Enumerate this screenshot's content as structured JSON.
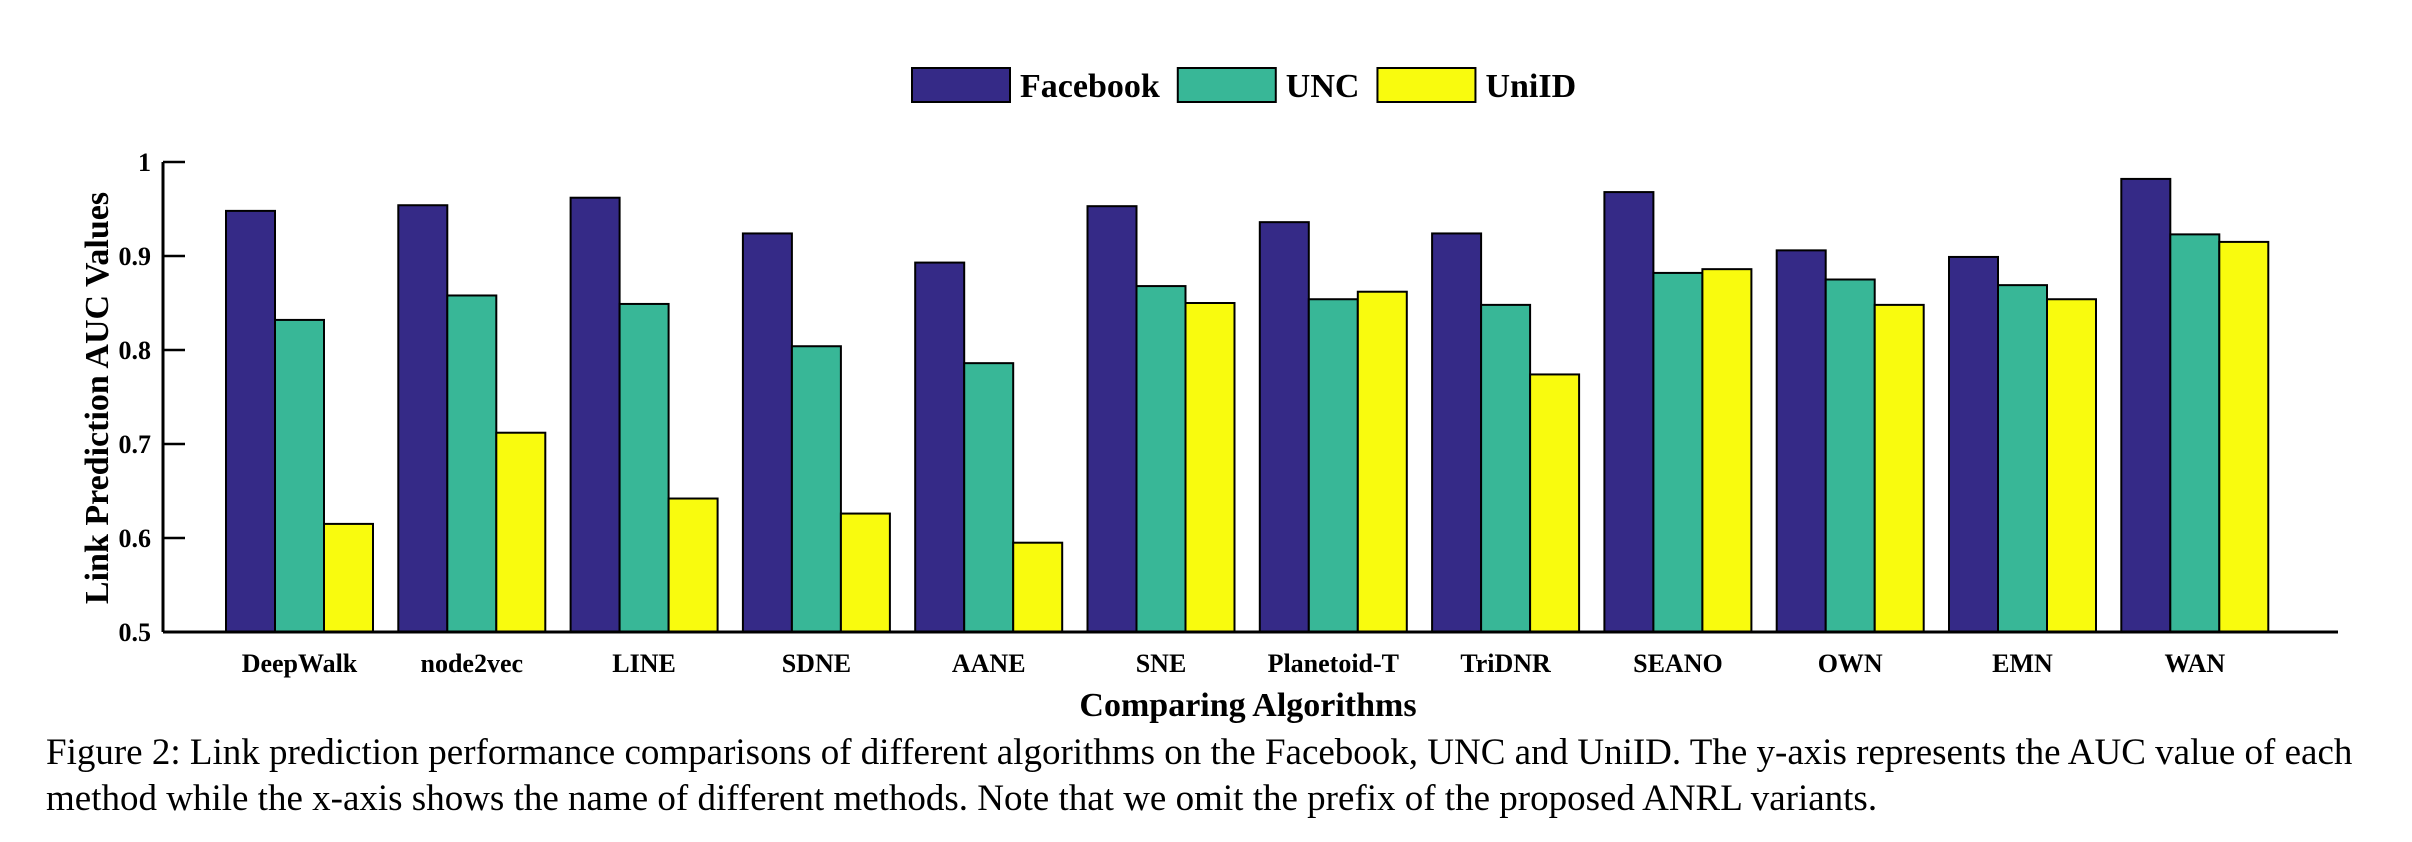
{
  "chart_data": {
    "type": "bar",
    "title": "",
    "xlabel": "Comparing Algorithms",
    "ylabel": "Link Prediction AUC Values",
    "ylim": [
      0.5,
      1
    ],
    "yticks": [
      "0.5",
      "0.6",
      "0.7",
      "0.8",
      "0.9",
      "1"
    ],
    "legend_position": "top-center",
    "grid": false,
    "categories": [
      "DeepWalk",
      "node2vec",
      "LINE",
      "SDNE",
      "AANE",
      "SNE",
      "Planetoid-T",
      "TriDNR",
      "SEANO",
      "OWN",
      "EMN",
      "WAN"
    ],
    "series": [
      {
        "name": "Facebook",
        "color": "#352a87",
        "values": [
          0.948,
          0.954,
          0.962,
          0.924,
          0.893,
          0.953,
          0.936,
          0.924,
          0.968,
          0.906,
          0.899,
          0.982
        ]
      },
      {
        "name": "UNC",
        "color": "#38b797",
        "values": [
          0.832,
          0.858,
          0.849,
          0.804,
          0.786,
          0.868,
          0.854,
          0.848,
          0.882,
          0.875,
          0.869,
          0.923
        ]
      },
      {
        "name": "UniID",
        "color": "#f9fb0e",
        "values": [
          0.615,
          0.712,
          0.642,
          0.626,
          0.595,
          0.85,
          0.862,
          0.774,
          0.886,
          0.848,
          0.854,
          0.915
        ]
      }
    ]
  },
  "caption": "Figure 2: Link prediction performance comparisons of different algorithms on the Facebook, UNC and UniID. The y-axis represents the AUC value of each method while the x-axis shows the name of different methods. Note that we omit the prefix of the proposed ANRL variants."
}
